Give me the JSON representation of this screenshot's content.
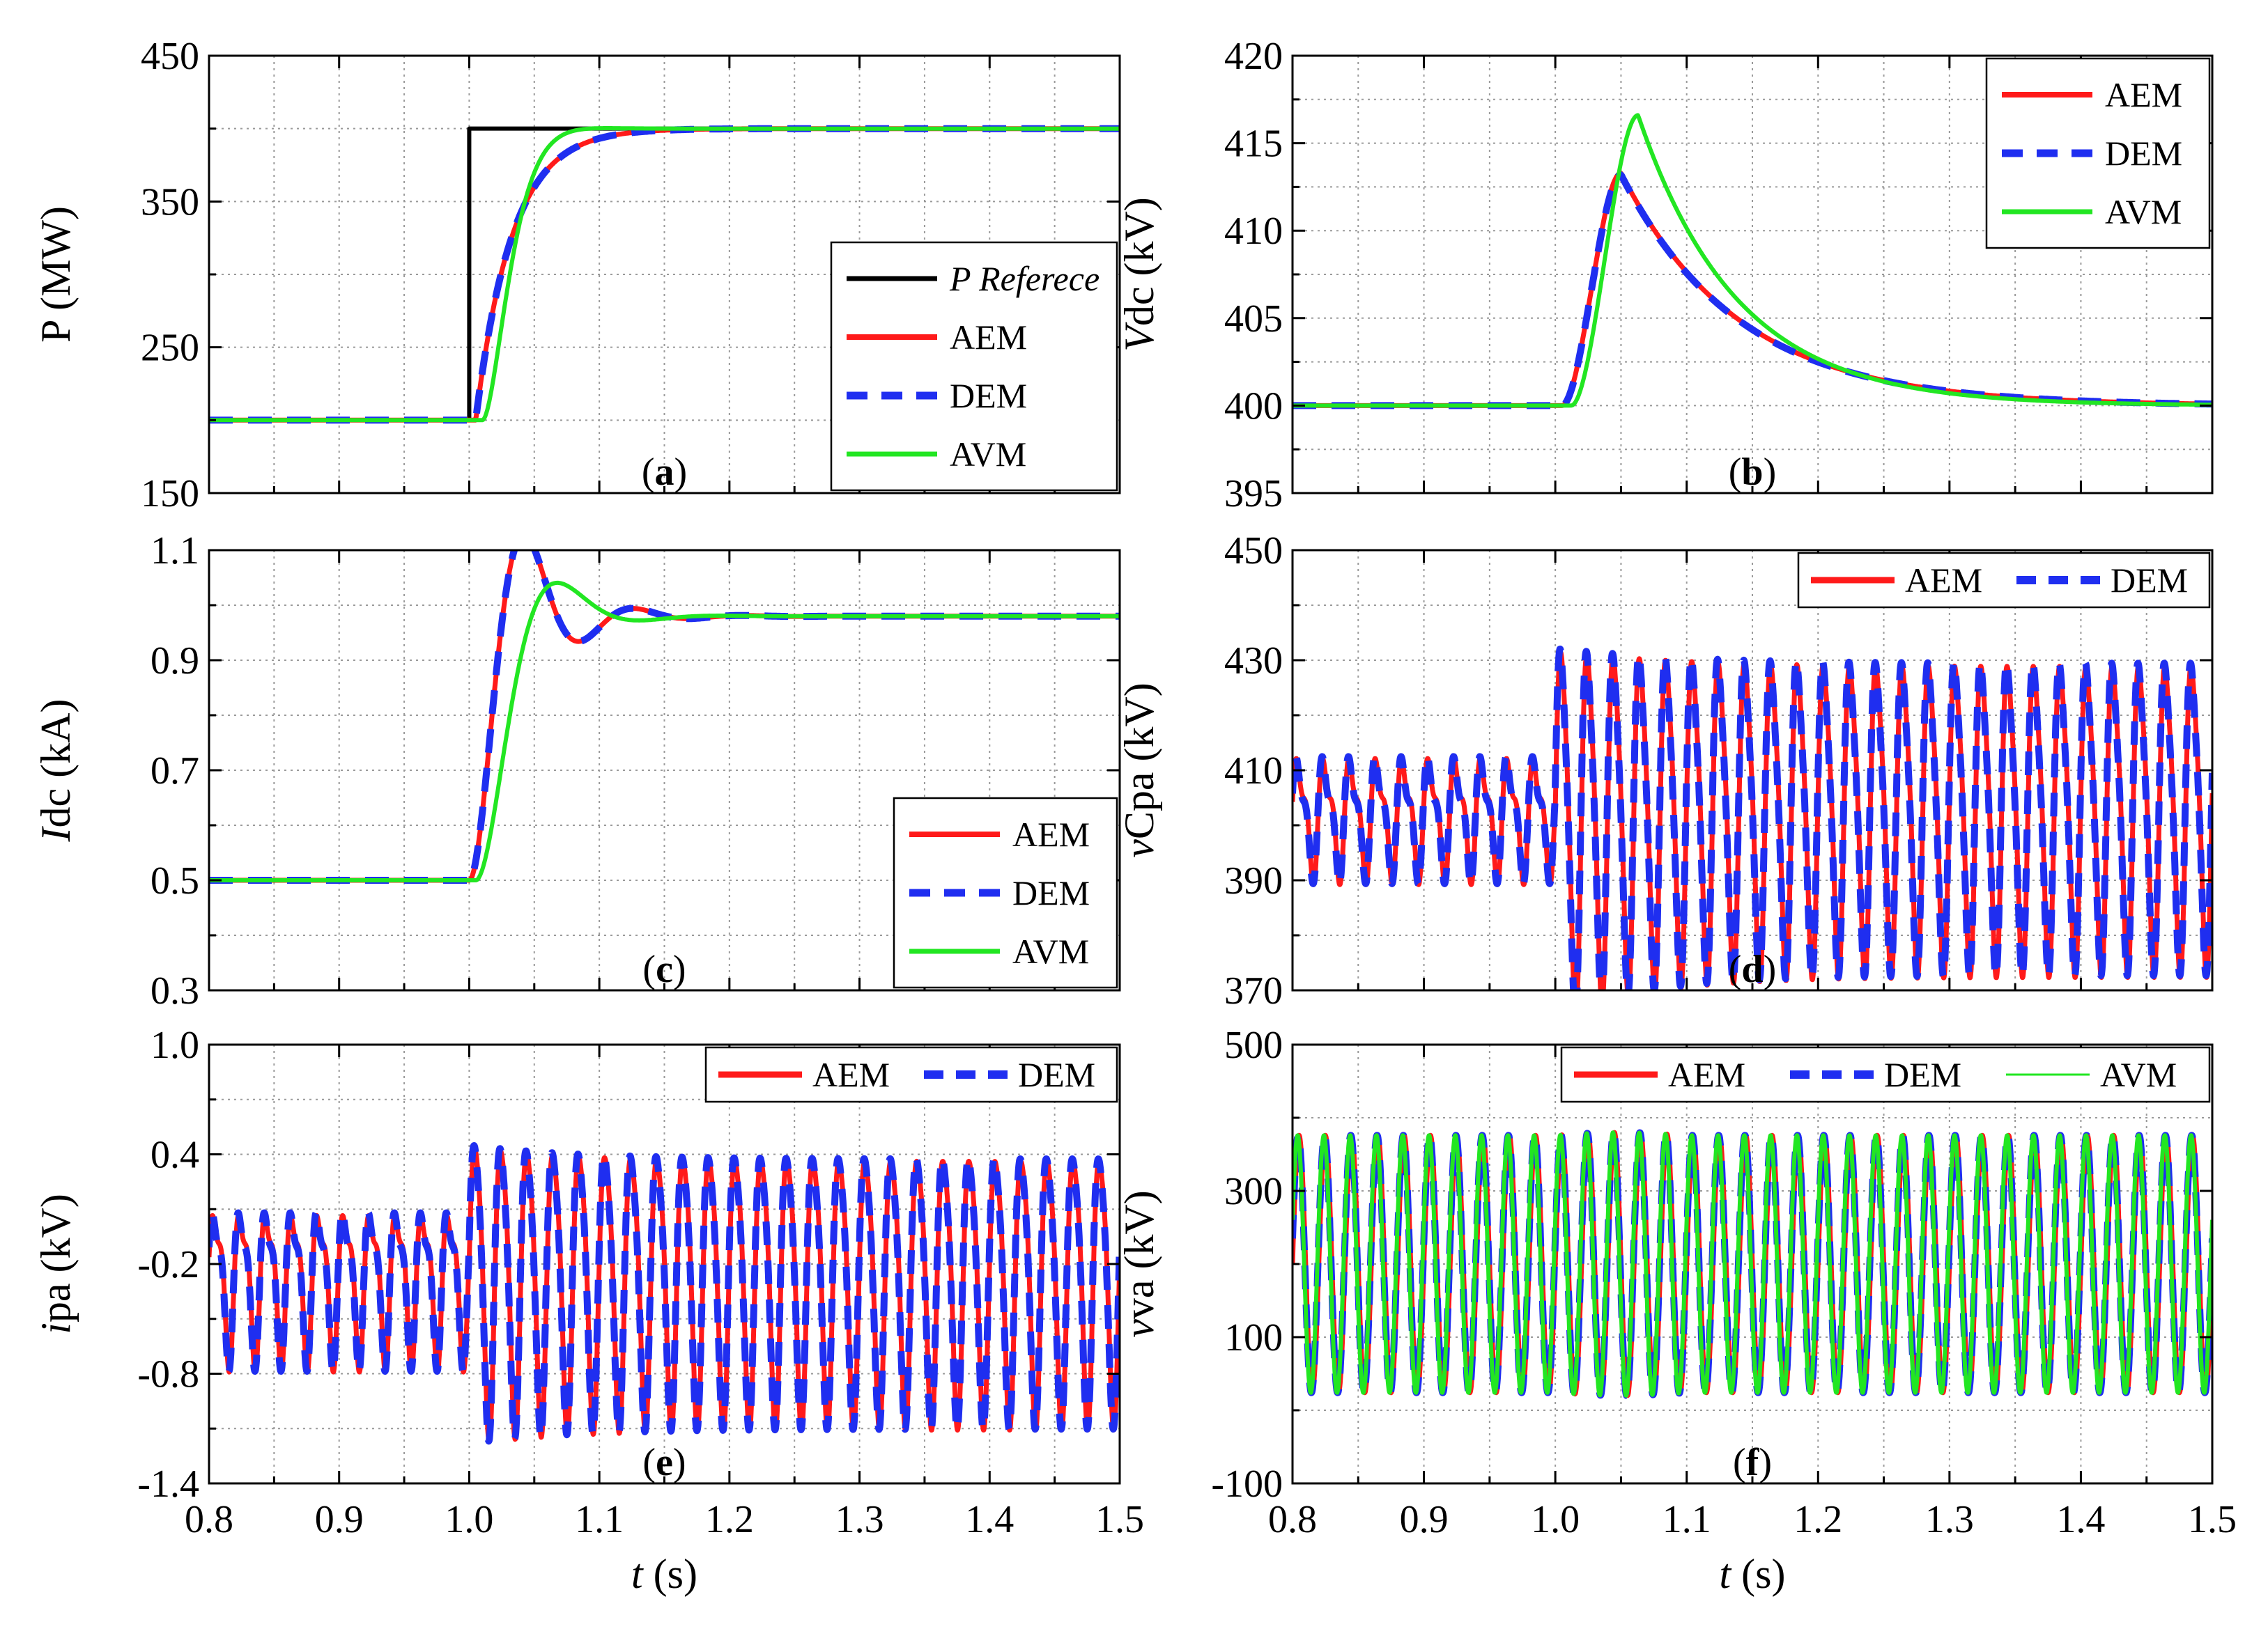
{
  "colors": {
    "ref": "#000000",
    "aem": "#ff1a1a",
    "dem": "#1f2ef0",
    "avm": "#22e622",
    "grid": "#9a9a9a"
  },
  "chart_data": [
    {
      "id": "a",
      "type": "line",
      "panel_label": "a",
      "xlabel": "",
      "ylabel": "P (MW)",
      "ylabel_italic": "",
      "ylabel_rest": "P (MW)",
      "xlim": [
        0.8,
        1.5
      ],
      "ylim": [
        150,
        450
      ],
      "xticks": [
        "0.8",
        "0.9",
        "1.0",
        "1.1",
        "1.2",
        "1.3",
        "1.4",
        "1.5"
      ],
      "show_xtick_labels": false,
      "yticks": [
        "150",
        "250",
        "350",
        "450"
      ],
      "legend": {
        "placement": "bottom-right",
        "entries": [
          "P Referece",
          "AEM",
          "DEM",
          "AVM"
        ]
      },
      "series": [
        {
          "name": "P Referece",
          "style": "ref",
          "kind": "step",
          "t0": 1.0,
          "y0": 200,
          "y1": 400
        },
        {
          "name": "AEM",
          "style": "aem",
          "kind": "first_order",
          "t0": 1.005,
          "y0": 200,
          "y1": 400,
          "tau": 0.028
        },
        {
          "name": "DEM",
          "style": "dem",
          "kind": "first_order",
          "t0": 1.005,
          "y0": 200,
          "y1": 400,
          "tau": 0.028
        },
        {
          "name": "AVM",
          "style": "avm",
          "kind": "second_order",
          "t0": 1.01,
          "y0": 200,
          "y1": 400,
          "wn": 75,
          "zeta": 0.9
        }
      ]
    },
    {
      "id": "b",
      "type": "line",
      "panel_label": "b",
      "xlabel": "",
      "ylabel": "Vdc (kV)",
      "ylabel_italic": "V",
      "ylabel_rest": "dc (kV)",
      "xlim": [
        0.8,
        1.5
      ],
      "ylim": [
        395,
        420
      ],
      "xticks": [
        "0.8",
        "0.9",
        "1.0",
        "1.1",
        "1.2",
        "1.3",
        "1.4",
        "1.5"
      ],
      "show_xtick_labels": false,
      "yticks": [
        "395",
        "400",
        "405",
        "410",
        "415",
        "420"
      ],
      "legend": {
        "placement": "top-right",
        "entries": [
          "AEM",
          "DEM",
          "AVM"
        ]
      },
      "series": [
        {
          "name": "AEM",
          "style": "aem",
          "kind": "pulse",
          "t0": 1.005,
          "base": 400,
          "peak_time": 1.05,
          "peak": 413.3,
          "tau_rise": 0.025,
          "tau_decay": 0.09
        },
        {
          "name": "DEM",
          "style": "dem",
          "kind": "pulse",
          "t0": 1.005,
          "base": 400,
          "peak_time": 1.05,
          "peak": 413.2,
          "tau_rise": 0.025,
          "tau_decay": 0.09
        },
        {
          "name": "AVM",
          "style": "avm",
          "kind": "pulse",
          "t0": 1.012,
          "base": 400,
          "peak_time": 1.063,
          "peak": 416.6,
          "tau_rise": 0.02,
          "tau_decay": 0.075
        }
      ]
    },
    {
      "id": "c",
      "type": "line",
      "panel_label": "c",
      "xlabel": "",
      "ylabel": "Idc (kA)",
      "ylabel_italic": "I",
      "ylabel_rest": "dc (kA)",
      "xlim": [
        0.8,
        1.5
      ],
      "ylim": [
        0.3,
        1.1
      ],
      "xticks": [
        "0.8",
        "0.9",
        "1.0",
        "1.1",
        "1.2",
        "1.3",
        "1.4",
        "1.5"
      ],
      "show_xtick_labels": false,
      "yticks": [
        "0.3",
        "0.5",
        "0.7",
        "0.9",
        "1.1"
      ],
      "legend": {
        "placement": "bottom-right",
        "entries": [
          "AEM",
          "DEM",
          "AVM"
        ]
      },
      "series": [
        {
          "name": "AEM",
          "style": "aem",
          "kind": "second_order",
          "t0": 1.0,
          "y0": 0.5,
          "y1": 0.98,
          "wn": 80,
          "zeta": 0.35
        },
        {
          "name": "DEM",
          "style": "dem",
          "kind": "second_order",
          "t0": 1.0,
          "y0": 0.5,
          "y1": 0.98,
          "wn": 80,
          "zeta": 0.35
        },
        {
          "name": "AVM",
          "style": "avm",
          "kind": "second_order",
          "t0": 1.005,
          "y0": 0.5,
          "y1": 0.98,
          "wn": 60,
          "zeta": 0.55
        }
      ]
    },
    {
      "id": "d",
      "type": "line",
      "panel_label": "d",
      "xlabel": "",
      "ylabel": "vCpa (kV)",
      "ylabel_italic": "v",
      "ylabel_rest": "Cpa (kV)",
      "xlim": [
        0.8,
        1.5
      ],
      "ylim": [
        370,
        450
      ],
      "xticks": [
        "0.8",
        "0.9",
        "1.0",
        "1.1",
        "1.2",
        "1.3",
        "1.4",
        "1.5"
      ],
      "show_xtick_labels": false,
      "yticks": [
        "370",
        "390",
        "410",
        "430",
        "450"
      ],
      "legend": {
        "placement": "top-right",
        "entries": [
          "AEM",
          "DEM"
        ]
      },
      "series": [
        {
          "name": "AEM",
          "style": "aem",
          "kind": "osc_d",
          "phase": 0.0
        },
        {
          "name": "DEM",
          "style": "dem",
          "kind": "osc_d",
          "phase": 0.12
        }
      ]
    },
    {
      "id": "e",
      "type": "line",
      "panel_label": "e",
      "xlabel": "t (s)",
      "ylabel": "ipa (kV)",
      "ylabel_italic": "i",
      "ylabel_rest": "pa (kV)",
      "xlim": [
        0.8,
        1.5
      ],
      "ylim": [
        -1.4,
        1.0
      ],
      "xticks": [
        "0.8",
        "0.9",
        "1.0",
        "1.1",
        "1.2",
        "1.3",
        "1.4",
        "1.5"
      ],
      "show_xtick_labels": true,
      "yticks": [
        "-1.4",
        "-0.8",
        "-0.2",
        "0.4",
        "1.0"
      ],
      "legend": {
        "placement": "top-right",
        "entries": [
          "AEM",
          "DEM"
        ]
      },
      "series": [
        {
          "name": "AEM",
          "style": "aem",
          "kind": "osc_e",
          "phase": 0.0
        },
        {
          "name": "DEM",
          "style": "dem",
          "kind": "osc_e",
          "phase": 0.12
        }
      ]
    },
    {
      "id": "f",
      "type": "line",
      "panel_label": "f",
      "xlabel": "t (s)",
      "ylabel": "vva (kV)",
      "ylabel_italic": "v",
      "ylabel_rest": "va (kV)",
      "xlim": [
        0.8,
        1.5
      ],
      "ylim": [
        -100,
        500
      ],
      "xticks": [
        "0.8",
        "0.9",
        "1.0",
        "1.1",
        "1.2",
        "1.3",
        "1.4",
        "1.5"
      ],
      "show_xtick_labels": true,
      "yticks": [
        "-100",
        "100",
        "300",
        "500"
      ],
      "legend": {
        "placement": "top-right",
        "entries": [
          "AEM",
          "DEM",
          "AVM"
        ]
      },
      "series": [
        {
          "name": "AEM",
          "style": "aem",
          "kind": "osc_f",
          "phase": 0.0
        },
        {
          "name": "DEM",
          "style": "dem",
          "kind": "osc_f",
          "phase": 0.2
        },
        {
          "name": "AVM",
          "style": "avm",
          "kind": "osc_f",
          "phase": 0.35
        }
      ]
    }
  ]
}
